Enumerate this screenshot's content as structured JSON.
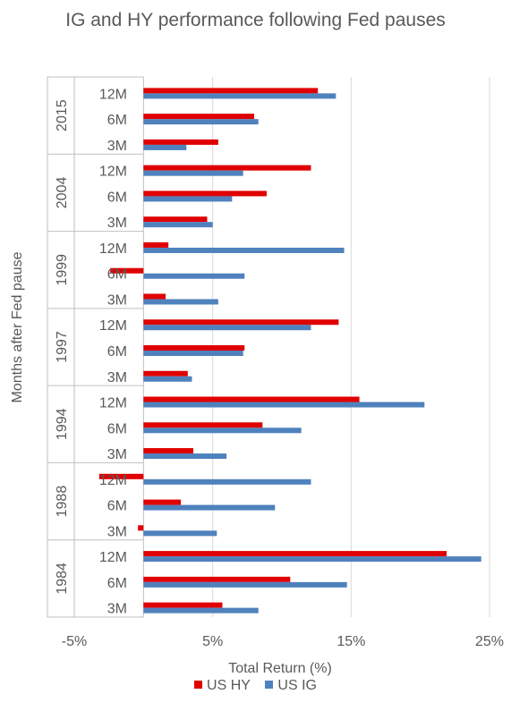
{
  "chart_data": {
    "type": "bar",
    "orientation": "horizontal",
    "title": "IG and HY performance following Fed pauses",
    "xlabel": "Total Return (%)",
    "ylabel": "Months after Fed pause",
    "xlim": [
      -5,
      25
    ],
    "xticks": [
      "-5%",
      "5%",
      "15%",
      "25%"
    ],
    "xtick_values": [
      -5,
      5,
      15,
      25
    ],
    "grid": "vertical",
    "legend_position": "bottom",
    "colors": {
      "US HY": "#e00000",
      "US IG": "#4f81bd"
    },
    "groups": [
      {
        "year": "2015",
        "rows": [
          {
            "label": "12M",
            "US HY": 12.6,
            "US IG": 13.9
          },
          {
            "label": "6M",
            "US HY": 8.0,
            "US IG": 8.3
          },
          {
            "label": "3M",
            "US HY": 5.4,
            "US IG": 3.1
          }
        ]
      },
      {
        "year": "2004",
        "rows": [
          {
            "label": "12M",
            "US HY": 12.1,
            "US IG": 7.2
          },
          {
            "label": "6M",
            "US HY": 8.9,
            "US IG": 6.4
          },
          {
            "label": "3M",
            "US HY": 4.6,
            "US IG": 5.0
          }
        ]
      },
      {
        "year": "1999",
        "rows": [
          {
            "label": "12M",
            "US HY": 1.8,
            "US IG": 14.5
          },
          {
            "label": "6M",
            "US HY": -2.4,
            "US IG": 7.3
          },
          {
            "label": "3M",
            "US HY": 1.6,
            "US IG": 5.4
          }
        ]
      },
      {
        "year": "1997",
        "rows": [
          {
            "label": "12M",
            "US HY": 14.1,
            "US IG": 12.1
          },
          {
            "label": "6M",
            "US HY": 7.3,
            "US IG": 7.2
          },
          {
            "label": "3M",
            "US HY": 3.2,
            "US IG": 3.5
          }
        ]
      },
      {
        "year": "1994",
        "rows": [
          {
            "label": "12M",
            "US HY": 15.6,
            "US IG": 20.3
          },
          {
            "label": "6M",
            "US HY": 8.6,
            "US IG": 11.4
          },
          {
            "label": "3M",
            "US HY": 3.6,
            "US IG": 6.0
          }
        ]
      },
      {
        "year": "1988",
        "rows": [
          {
            "label": "12M",
            "US HY": -3.2,
            "US IG": 12.1
          },
          {
            "label": "6M",
            "US HY": 2.7,
            "US IG": 9.5
          },
          {
            "label": "3M",
            "US HY": -0.4,
            "US IG": 5.3
          }
        ]
      },
      {
        "year": "1984",
        "rows": [
          {
            "label": "12M",
            "US HY": 21.9,
            "US IG": 24.4
          },
          {
            "label": "6M",
            "US HY": 10.6,
            "US IG": 14.7
          },
          {
            "label": "3M",
            "US HY": 5.7,
            "US IG": 8.3
          }
        ]
      }
    ],
    "series": [
      {
        "name": "US HY"
      },
      {
        "name": "US IG"
      }
    ]
  }
}
